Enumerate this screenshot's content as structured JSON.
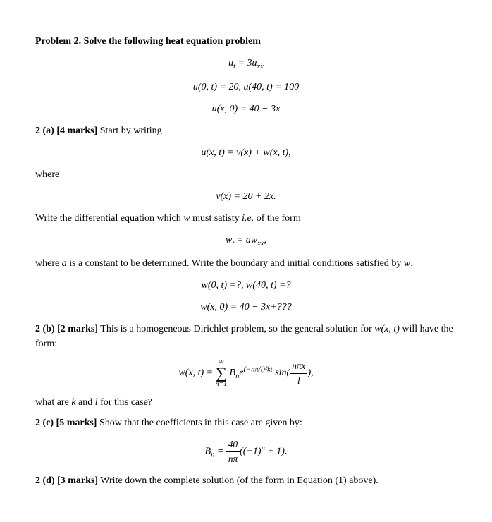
{
  "title": "Problem 2. Solve the following heat equation problem",
  "eq1": "u",
  "eq1_sub": "t",
  "eq1_rhs": " = 3u",
  "eq1_rhs_sub": "xx",
  "eq2": "u(0, t) = 20, u(40, t) = 100",
  "eq3": "u(x, 0) = 40 − 3x",
  "part_a": {
    "label": "2 (a) [4 marks]",
    "text": " Start by writing",
    "eq": "u(x, t) = v(x) + w(x, t),",
    "where": "where",
    "eq_v": "v(x) = 20 + 2x.",
    "text2_a": "Write the differential equation which ",
    "text2_w": "w",
    "text2_b": " must satisty ",
    "text2_ie": "i.e.",
    "text2_c": " of the form",
    "eq_w_lhs": "w",
    "eq_w_sub1": "t",
    "eq_w_mid": " = aw",
    "eq_w_sub2": "xx",
    "eq_w_end": ",",
    "text3_a": "where ",
    "text3_a2": "a",
    "text3_b": " is a constant to be determined. Write the boundary and initial conditions satisfied by ",
    "text3_w": "w",
    "text3_c": ".",
    "eq_bc": "w(0, t) =?, w(40, t) =?",
    "eq_ic": "w(x, 0) = 40 − 3x+???"
  },
  "part_b": {
    "label": "2 (b) [2 marks]",
    "text_a": " This is a homogeneous Dirichlet problem, so the general solution for ",
    "text_w": "w(x, t)",
    "text_b": " will have the form:",
    "eq_lhs": "w(x, t) = ",
    "sum_top": "∞",
    "sum_bot": "n=1",
    "eq_B": " B",
    "eq_B_sub": "n",
    "eq_e": "e",
    "eq_exp": "(−nπ/l)²kt",
    "eq_sin": " sin(",
    "frac_num": "nπx",
    "frac_den": "l",
    "eq_close": "),",
    "text2_a": "what are ",
    "text2_k": "k",
    "text2_and": " and ",
    "text2_l": "l",
    "text2_b": " for this case?"
  },
  "part_c": {
    "label": "2 (c) [5 marks]",
    "text": " Show that the coefficients in this case are given by:",
    "eq_B": "B",
    "eq_B_sub": "n",
    "eq_eq": " = ",
    "frac_num": "40",
    "frac_den": "nπ",
    "eq_rhs": "((−1)",
    "eq_rhs_sup": "n",
    "eq_rhs2": " + 1)."
  },
  "part_d": {
    "label": "2 (d) [3 marks]",
    "text": " Write down the complete solution (of the form in Equation (1) above)."
  }
}
